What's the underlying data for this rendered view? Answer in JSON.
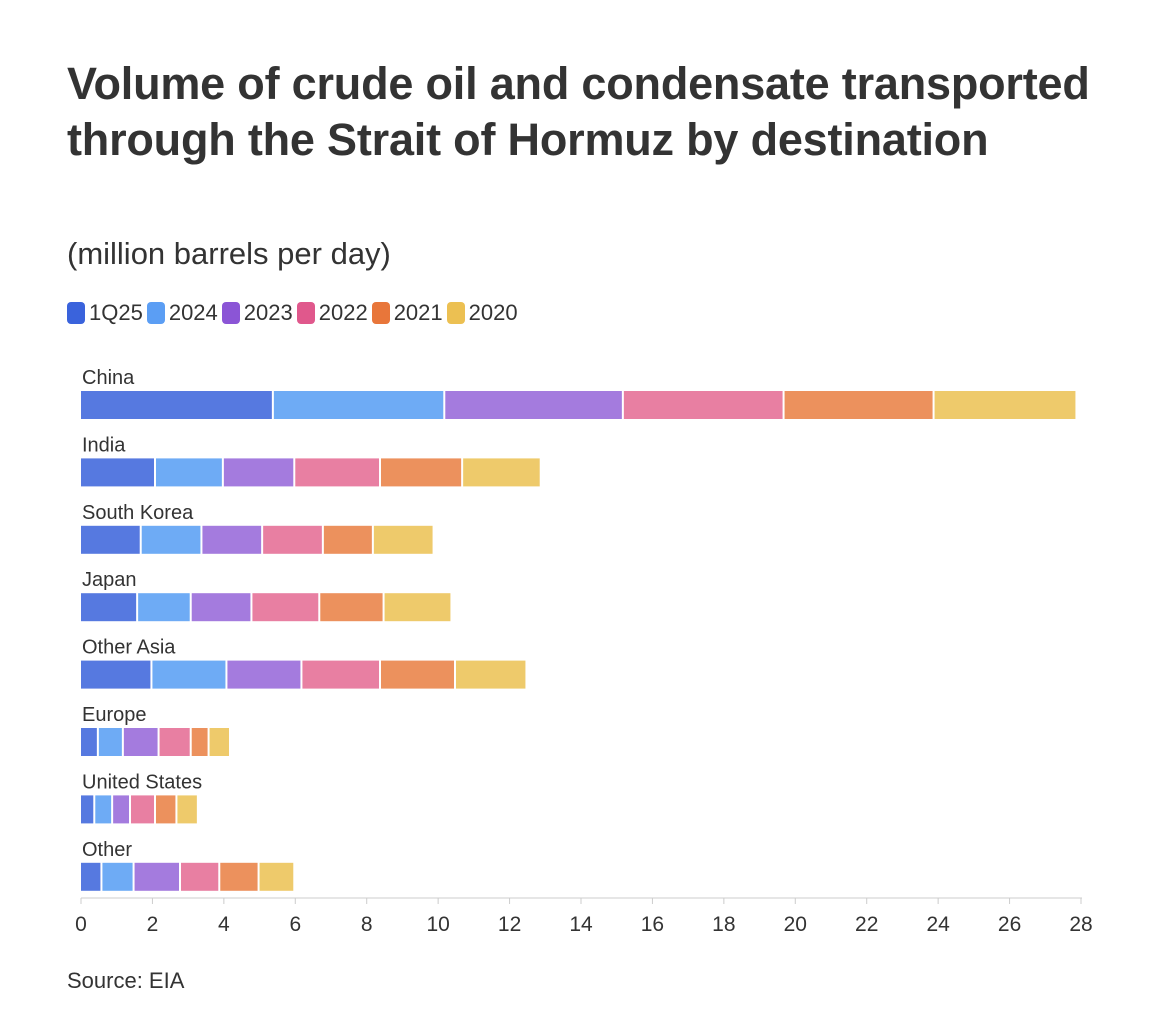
{
  "title": "Volume of crude oil and condensate transported through the Strait of Hormuz by destination",
  "subtitle": "(million barrels per day)",
  "source": "Source: EIA",
  "chart_data": {
    "type": "bar",
    "orientation": "horizontal",
    "stacked": true,
    "categories": [
      "China",
      "India",
      "South Korea",
      "Japan",
      "Other Asia",
      "Europe",
      "United States",
      "Other"
    ],
    "series": [
      {
        "name": "1Q25",
        "color": "#3a63dc",
        "bar_color": "#5679e0",
        "values": [
          5.4,
          2.1,
          1.7,
          1.6,
          2.0,
          0.5,
          0.4,
          0.6
        ]
      },
      {
        "name": "2024",
        "color": "#5b9ef4",
        "bar_color": "#6eabf5",
        "values": [
          4.8,
          1.9,
          1.7,
          1.5,
          2.1,
          0.7,
          0.5,
          0.9
        ]
      },
      {
        "name": "2023",
        "color": "#8b55d6",
        "bar_color": "#a47bde",
        "values": [
          5.0,
          2.0,
          1.7,
          1.7,
          2.1,
          1.0,
          0.5,
          1.3
        ]
      },
      {
        "name": "2022",
        "color": "#e0588c",
        "bar_color": "#e87fa2",
        "values": [
          4.5,
          2.4,
          1.7,
          1.9,
          2.2,
          0.9,
          0.7,
          1.1
        ]
      },
      {
        "name": "2021",
        "color": "#e8763a",
        "bar_color": "#ec915d",
        "values": [
          4.2,
          2.3,
          1.4,
          1.8,
          2.1,
          0.5,
          0.6,
          1.1
        ]
      },
      {
        "name": "2020",
        "color": "#ecc052",
        "bar_color": "#eeca6b",
        "values": [
          4.0,
          2.2,
          1.7,
          1.9,
          2.0,
          0.6,
          0.6,
          1.0
        ]
      }
    ],
    "xlim": [
      0,
      28
    ],
    "xticks": [
      0,
      2,
      4,
      6,
      8,
      10,
      12,
      14,
      16,
      18,
      20,
      22,
      24,
      26,
      28
    ],
    "grid": false,
    "legend": "top-left"
  }
}
